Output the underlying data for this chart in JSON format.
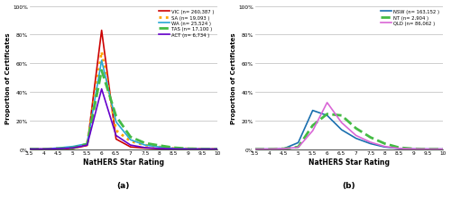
{
  "x_ticks": [
    3.5,
    4,
    4.5,
    5,
    5.5,
    6,
    6.5,
    7,
    7.5,
    8,
    8.5,
    9,
    9.5,
    10
  ],
  "x_values": [
    3.5,
    4.0,
    4.5,
    5.0,
    5.5,
    6.0,
    6.5,
    7.0,
    7.5,
    8.0,
    8.5,
    9.0,
    9.5,
    10.0
  ],
  "panel_a": {
    "VIC": {
      "color": "#cc0000",
      "linestyle": "solid",
      "linewidth": 1.2,
      "label": "VIC (n= 260,387 )",
      "y": [
        0.0,
        0.0,
        0.003,
        0.004,
        0.025,
        0.83,
        0.07,
        0.015,
        0.007,
        0.003,
        0.001,
        0.0,
        0.0,
        0.0
      ]
    },
    "SA": {
      "color": "#ffa500",
      "linestyle": "dotted",
      "linewidth": 2.0,
      "label": "SA (n= 19,093 )",
      "y": [
        0.0,
        0.0,
        0.003,
        0.008,
        0.035,
        0.68,
        0.13,
        0.055,
        0.028,
        0.015,
        0.005,
        0.002,
        0.0,
        0.0
      ]
    },
    "WA": {
      "color": "#29a8d4",
      "linestyle": "solid",
      "linewidth": 1.2,
      "label": "WA (n= 25,524 )",
      "y": [
        0.0,
        0.0,
        0.008,
        0.018,
        0.038,
        0.62,
        0.19,
        0.065,
        0.028,
        0.015,
        0.005,
        0.002,
        0.0,
        0.0
      ]
    },
    "TAS": {
      "color": "#44bb44",
      "linestyle": "dashed",
      "linewidth": 2.0,
      "label": "TAS (n= 17,100 )",
      "y": [
        0.0,
        0.0,
        0.003,
        0.008,
        0.035,
        0.55,
        0.23,
        0.085,
        0.042,
        0.025,
        0.01,
        0.003,
        0.001,
        0.0
      ]
    },
    "ACT": {
      "color": "#6600cc",
      "linestyle": "solid",
      "linewidth": 1.2,
      "label": "ACT (n= 6,734 )",
      "y": [
        0.0,
        0.0,
        0.003,
        0.008,
        0.028,
        0.42,
        0.095,
        0.028,
        0.01,
        0.004,
        0.001,
        0.0,
        0.0,
        0.0
      ]
    }
  },
  "panel_b": {
    "NSW": {
      "color": "#1a6faf",
      "linestyle": "solid",
      "linewidth": 1.2,
      "label": "NSW (n= 163,152 )",
      "y": [
        0.0,
        0.0,
        0.003,
        0.045,
        0.27,
        0.235,
        0.135,
        0.075,
        0.038,
        0.014,
        0.004,
        0.001,
        0.0,
        0.0
      ]
    },
    "NT": {
      "color": "#44bb44",
      "linestyle": "dashed",
      "linewidth": 2.0,
      "label": "NT (n= 2,904 )",
      "y": [
        0.0,
        0.0,
        0.003,
        0.015,
        0.165,
        0.245,
        0.235,
        0.145,
        0.082,
        0.038,
        0.01,
        0.002,
        0.0,
        0.0
      ]
    },
    "QLD": {
      "color": "#d966d6",
      "linestyle": "solid",
      "linewidth": 1.2,
      "label": "QLD (n= 86,062 )",
      "y": [
        0.0,
        0.0,
        0.003,
        0.012,
        0.128,
        0.325,
        0.185,
        0.095,
        0.048,
        0.018,
        0.004,
        0.001,
        0.0,
        0.0
      ]
    }
  },
  "ylabel": "Proportion of Certificates",
  "xlabel": "NatHERS Star Rating",
  "ylim": [
    0,
    1.0
  ],
  "yticks": [
    0.0,
    0.2,
    0.4,
    0.6,
    0.8,
    1.0
  ],
  "ytick_labels": [
    "0%",
    "20%",
    "40%",
    "60%",
    "80%",
    "100%"
  ],
  "label_a": "(a)",
  "label_b": "(b)",
  "bg_color": "#ffffff",
  "grid_color": "#bbbbbb"
}
